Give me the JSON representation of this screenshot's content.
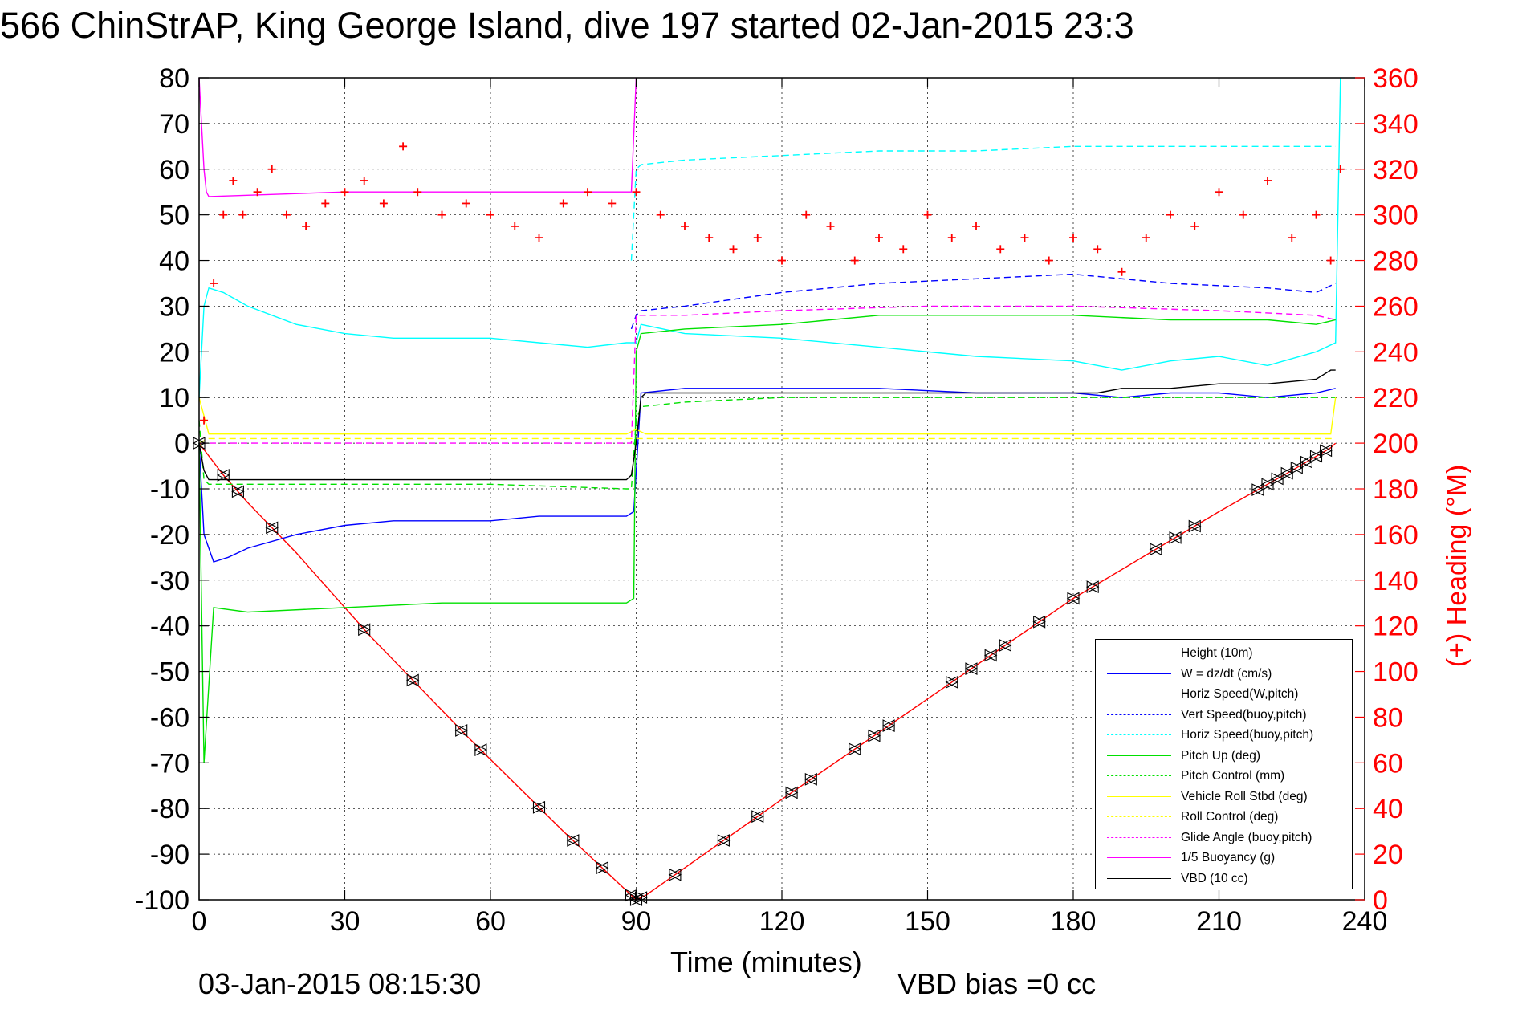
{
  "header": {
    "title": "566 ChinStrAP, King George Island, dive 197 started 02-Jan-2015 23:3"
  },
  "footer": {
    "timestamp": "03-Jan-2015 08:15:30",
    "vbd_bias": "VBD bias =0 cc"
  },
  "chart_data": {
    "type": "line",
    "title": "566 ChinStrAP, King George Island, dive 197 started 02-Jan-2015 23:3",
    "xlabel": "Time (minutes)",
    "ylabel": "",
    "y2label": "(+) Heading (°M)",
    "xlim": [
      0,
      240
    ],
    "ylim": [
      -100,
      80
    ],
    "y2lim": [
      0,
      360
    ],
    "x_ticks": [
      0,
      30,
      60,
      90,
      120,
      150,
      180,
      210,
      240
    ],
    "y_ticks": [
      80,
      70,
      60,
      50,
      40,
      30,
      20,
      10,
      0,
      -10,
      -20,
      -30,
      -40,
      -50,
      -60,
      -70,
      -80,
      -90,
      -100
    ],
    "y2_ticks": [
      360,
      340,
      320,
      300,
      280,
      260,
      240,
      220,
      200,
      180,
      160,
      140,
      120,
      100,
      80,
      60,
      40,
      20,
      0
    ],
    "grid": true,
    "legend_position": "bottom-right",
    "colors": {
      "height": "#ff0000",
      "w": "#0000ff",
      "cyan": "#00ffff",
      "green": "#00e000",
      "yellow": "#ffff00",
      "magenta": "#ff00ff",
      "black": "#000000",
      "axis_right": "#ff0000"
    },
    "series": [
      {
        "name": "Height (10m)",
        "color": "#ff0000",
        "style": "solid",
        "x": [
          0,
          5,
          10,
          20,
          35,
          55,
          75,
          88,
          90,
          92,
          100,
          120,
          150,
          180,
          210,
          225,
          233,
          234
        ],
        "y": [
          0,
          -7,
          -13,
          -24,
          -42,
          -64,
          -85,
          -98,
          -100,
          -99,
          -93,
          -78,
          -56,
          -34,
          -15,
          -6,
          -1,
          0
        ]
      },
      {
        "name": "W = dz/dt (cm/s)",
        "color": "#0000ff",
        "style": "solid",
        "x": [
          0,
          1,
          3,
          6,
          10,
          20,
          30,
          40,
          50,
          60,
          70,
          80,
          88,
          89.5,
          91,
          100,
          120,
          140,
          160,
          180,
          190,
          200,
          210,
          220,
          230,
          234
        ],
        "y": [
          0,
          -20,
          -26,
          -25,
          -23,
          -20,
          -18,
          -17,
          -17,
          -17,
          -16,
          -16,
          -16,
          -15,
          11,
          12,
          12,
          12,
          11,
          11,
          10,
          11,
          11,
          10,
          11,
          12
        ]
      },
      {
        "name": "Horiz Speed(W,pitch)",
        "color": "#00ffff",
        "style": "solid",
        "x": [
          0,
          1,
          2,
          5,
          10,
          20,
          30,
          40,
          50,
          60,
          70,
          80,
          88,
          90,
          91,
          100,
          120,
          140,
          160,
          180,
          190,
          200,
          210,
          220,
          230,
          234,
          235
        ],
        "y": [
          10,
          30,
          34,
          33,
          30,
          26,
          24,
          23,
          23,
          23,
          22,
          21,
          22,
          22,
          26,
          24,
          23,
          21,
          19,
          18,
          16,
          18,
          19,
          17,
          20,
          22,
          80
        ]
      },
      {
        "name": "Vert Speed(buoy,pitch)",
        "color": "#0000ff",
        "style": "dashed",
        "x": [
          89,
          90,
          91,
          100,
          120,
          140,
          160,
          180,
          200,
          220,
          230,
          234
        ],
        "y": [
          25,
          28,
          29,
          30,
          33,
          35,
          36,
          37,
          35,
          34,
          33,
          35
        ]
      },
      {
        "name": "Horiz Speed(buoy,pitch)",
        "color": "#00ffff",
        "style": "dashed",
        "x": [
          89,
          90,
          91,
          100,
          120,
          140,
          160,
          180,
          200,
          220,
          234
        ],
        "y": [
          40,
          60,
          61,
          62,
          63,
          64,
          64,
          65,
          65,
          65,
          65
        ]
      },
      {
        "name": "Pitch Up (deg)",
        "color": "#00e000",
        "style": "solid",
        "x": [
          0,
          1,
          3,
          10,
          30,
          50,
          70,
          88,
          89.5,
          90,
          91,
          100,
          120,
          140,
          160,
          180,
          200,
          220,
          230,
          234
        ],
        "y": [
          0,
          -70,
          -36,
          -37,
          -36,
          -35,
          -35,
          -35,
          -34,
          20,
          24,
          25,
          26,
          28,
          28,
          28,
          27,
          27,
          26,
          27
        ]
      },
      {
        "name": "Pitch Control (mm)",
        "color": "#00e000",
        "style": "dashed",
        "x": [
          0,
          1,
          2,
          10,
          30,
          60,
          88,
          89,
          90,
          91,
          100,
          120,
          150,
          180,
          210,
          230,
          234
        ],
        "y": [
          5,
          -8,
          -9,
          -9,
          -9,
          -9,
          -10,
          -10,
          5,
          8,
          9,
          10,
          10,
          10,
          10,
          10,
          10
        ]
      },
      {
        "name": "Vehicle Roll Stbd (deg)",
        "color": "#ffff00",
        "style": "solid",
        "x": [
          0,
          2,
          10,
          30,
          60,
          88,
          90,
          92,
          120,
          150,
          180,
          210,
          230,
          233,
          234
        ],
        "y": [
          10,
          2,
          2,
          2,
          2,
          2,
          3,
          2,
          2,
          2,
          2,
          2,
          2,
          2,
          10
        ]
      },
      {
        "name": "Roll Control (deg)",
        "color": "#ffff00",
        "style": "dashed",
        "x": [
          0,
          2,
          10,
          30,
          60,
          88,
          90,
          92,
          120,
          150,
          180,
          210,
          230,
          234
        ],
        "y": [
          0,
          1,
          1,
          1,
          1,
          1,
          1,
          1,
          1,
          1,
          1,
          1,
          1,
          1
        ]
      },
      {
        "name": "Glide Angle (buoy,pitch)",
        "color": "#ff00ff",
        "style": "dashed",
        "x": [
          0,
          10,
          30,
          60,
          88,
          89,
          90,
          91,
          100,
          120,
          150,
          180,
          210,
          230,
          234
        ],
        "y": [
          0,
          0,
          0,
          0,
          0,
          0,
          28,
          28,
          28,
          29,
          30,
          30,
          29,
          28,
          27
        ]
      },
      {
        "name": "1/5 Buoyancy (g)",
        "color": "#ff00ff",
        "style": "solid",
        "x": [
          0,
          0.5,
          1,
          1.5,
          2,
          30,
          60,
          88,
          89,
          90
        ],
        "y": [
          80,
          70,
          60,
          55,
          54,
          55,
          55,
          55,
          55,
          80
        ]
      },
      {
        "name": "VBD (10 cc)",
        "color": "#000000",
        "style": "solid",
        "x": [
          0,
          1,
          2,
          3,
          30,
          60,
          88,
          89,
          90,
          91,
          92,
          120,
          150,
          180,
          185,
          190,
          200,
          210,
          220,
          230,
          233,
          234
        ],
        "y": [
          0,
          -6,
          -8,
          -8,
          -8,
          -8,
          -8,
          -7,
          0,
          10,
          11,
          11,
          11,
          11,
          11,
          12,
          12,
          13,
          13,
          14,
          16,
          16
        ]
      }
    ],
    "heading_series": {
      "name": "(+) Heading (°M)",
      "color": "#ff0000",
      "axis": "right",
      "marker": "+",
      "x": [
        1,
        3,
        5,
        7,
        9,
        12,
        15,
        18,
        22,
        26,
        30,
        34,
        38,
        42,
        45,
        50,
        55,
        60,
        65,
        70,
        75,
        80,
        85,
        90,
        95,
        100,
        105,
        110,
        115,
        120,
        125,
        130,
        135,
        140,
        145,
        150,
        155,
        160,
        165,
        170,
        175,
        180,
        185,
        190,
        195,
        200,
        205,
        210,
        215,
        220,
        225,
        230,
        233,
        235
      ],
      "y": [
        210,
        270,
        300,
        315,
        300,
        310,
        320,
        300,
        295,
        305,
        310,
        315,
        305,
        330,
        310,
        300,
        305,
        300,
        295,
        290,
        305,
        310,
        305,
        310,
        300,
        295,
        290,
        285,
        290,
        280,
        300,
        295,
        280,
        290,
        285,
        300,
        290,
        295,
        285,
        290,
        280,
        290,
        285,
        275,
        290,
        300,
        295,
        310,
        300,
        315,
        290,
        300,
        280,
        320
      ]
    },
    "glide_markers_x": [
      0,
      5,
      8,
      15,
      34,
      44,
      54,
      58,
      70,
      77,
      83,
      89,
      90,
      91,
      98,
      108,
      115,
      122,
      126,
      135,
      139,
      142,
      155,
      159,
      163,
      166,
      173,
      180,
      184,
      197,
      201,
      205,
      218,
      220,
      222,
      224,
      226,
      228,
      230,
      232
    ]
  }
}
